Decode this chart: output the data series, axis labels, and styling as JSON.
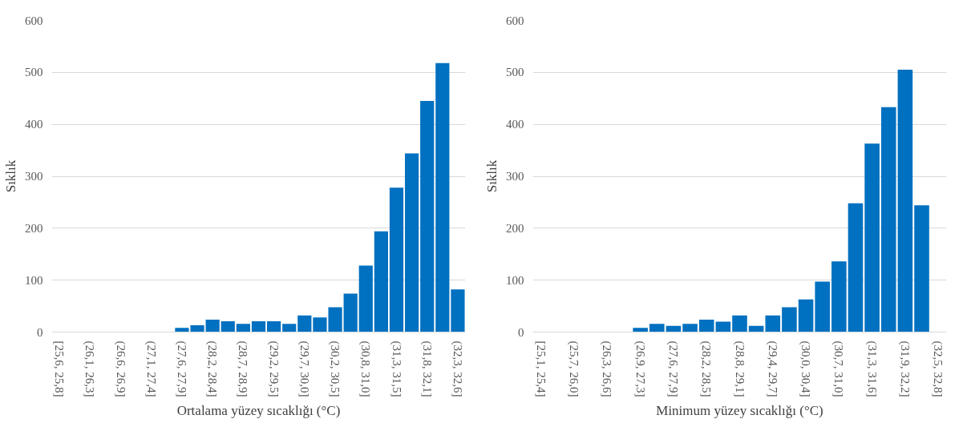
{
  "chart_data": [
    {
      "type": "bar",
      "xlabel": "Ortalama yüzey sıcaklığı (°C)",
      "ylabel": "Sıklık",
      "color": "#0070c0",
      "grid": "y",
      "ylim": [
        0,
        600
      ],
      "yticks": [
        0,
        100,
        200,
        300,
        400,
        500,
        600
      ],
      "categories": [
        "[25,6, 25,8]",
        null,
        "(26,1, 26,3]",
        null,
        "(26,6, 26,9]",
        null,
        "(27,1, 27,4]",
        null,
        "(27,6, 27,9]",
        null,
        "(28,2, 28,4]",
        null,
        "(28,7, 28,9]",
        null,
        "(29,2, 29,5]",
        null,
        "(29,7, 30,0]",
        null,
        "(30,2, 30,5]",
        null,
        "(30,8, 31,0]",
        null,
        "(31,3, 31,5]",
        null,
        "(31,8, 32,1]",
        null,
        "(32,3, 32,6]"
      ],
      "values": [
        0,
        0,
        0,
        0,
        0,
        0,
        0,
        0,
        8,
        13,
        24,
        21,
        16,
        21,
        21,
        16,
        32,
        28,
        48,
        74,
        128,
        194,
        278,
        344,
        445,
        518,
        82
      ]
    },
    {
      "type": "bar",
      "xlabel": "Minimum yüzey sıcaklığı (°C)",
      "ylabel": "Sıklık",
      "color": "#0070c0",
      "grid": "y",
      "ylim": [
        0,
        600
      ],
      "yticks": [
        0,
        100,
        200,
        300,
        400,
        500,
        600
      ],
      "categories": [
        "[25,1, 25,4]",
        null,
        "(25,7, 26,0]",
        null,
        "(26,3, 26,6]",
        null,
        "(26,9, 27,3]",
        null,
        "(27,6, 27,9]",
        null,
        "(28,2, 28,5]",
        null,
        "(28,8, 29,1]",
        null,
        "(29,4, 29,7]",
        null,
        "(30,0, 30,4]",
        null,
        "(30,7, 31,0]",
        null,
        "(31,3, 31,6]",
        null,
        "(31,9, 32,2]",
        null,
        "(32,5, 32,8]"
      ],
      "values": [
        0,
        0,
        0,
        0,
        0,
        0,
        8,
        16,
        12,
        16,
        24,
        20,
        32,
        12,
        32,
        48,
        63,
        97,
        136,
        248,
        363,
        433,
        505,
        244,
        0
      ]
    }
  ]
}
